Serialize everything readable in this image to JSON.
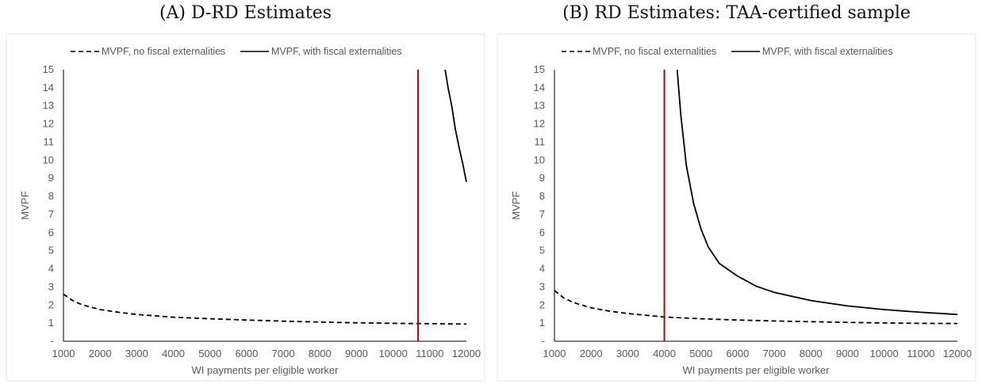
{
  "chart_data": [
    {
      "type": "line",
      "title": "(A) D-RD Estimates",
      "xlabel": "WI payments per eligible worker",
      "ylabel": "MVPF",
      "xlim": [
        1000,
        12000
      ],
      "ylim": [
        0,
        15
      ],
      "x_ticks": [
        "1000",
        "2000",
        "3000",
        "4000",
        "5000",
        "6000",
        "7000",
        "8000",
        "9000",
        "10000",
        "11000",
        "12000"
      ],
      "y_ticks": [
        "-",
        "1",
        "2",
        "3",
        "4",
        "5",
        "6",
        "7",
        "8",
        "9",
        "10",
        "11",
        "12",
        "13",
        "14",
        "15"
      ],
      "legend_position": "top",
      "series": [
        {
          "name": "MVPF, no fiscal externalities",
          "style": "dashed",
          "color": "#000000",
          "points": [
            [
              1000,
              2.6
            ],
            [
              1250,
              2.25
            ],
            [
              1500,
              2.02
            ],
            [
              2000,
              1.75
            ],
            [
              2500,
              1.6
            ],
            [
              3000,
              1.48
            ],
            [
              4000,
              1.33
            ],
            [
              5000,
              1.24
            ],
            [
              6000,
              1.17
            ],
            [
              7000,
              1.11
            ],
            [
              8000,
              1.06
            ],
            [
              9000,
              1.02
            ],
            [
              10000,
              0.99
            ],
            [
              11000,
              0.97
            ],
            [
              12000,
              0.95
            ]
          ]
        },
        {
          "name": "MVPF, with fiscal externalities",
          "style": "solid",
          "color": "#000000",
          "points": [
            [
              11420,
              15
            ],
            [
              11500,
              14
            ],
            [
              11600,
              13
            ],
            [
              11700,
              11.7
            ],
            [
              11800,
              10.7
            ],
            [
              11900,
              9.8
            ],
            [
              12000,
              8.8
            ]
          ]
        }
      ],
      "reference_line": {
        "x": 10680,
        "color": "#c00000"
      }
    },
    {
      "type": "line",
      "title": "(B) RD Estimates: TAA-certified sample",
      "xlabel": "WI payments per eligible worker",
      "ylabel": "MVPF",
      "xlim": [
        1000,
        12000
      ],
      "ylim": [
        0,
        15
      ],
      "x_ticks": [
        "1000",
        "2000",
        "3000",
        "4000",
        "5000",
        "6000",
        "7000",
        "8000",
        "9000",
        "10000",
        "11000",
        "12000"
      ],
      "y_ticks": [
        "-",
        "1",
        "2",
        "3",
        "4",
        "5",
        "6",
        "7",
        "8",
        "9",
        "10",
        "11",
        "12",
        "13",
        "14",
        "15"
      ],
      "legend_position": "top",
      "series": [
        {
          "name": "MVPF, no fiscal externalities",
          "style": "dashed",
          "color": "#000000",
          "points": [
            [
              1000,
              2.8
            ],
            [
              1250,
              2.4
            ],
            [
              1500,
              2.15
            ],
            [
              2000,
              1.85
            ],
            [
              2500,
              1.66
            ],
            [
              3000,
              1.53
            ],
            [
              4000,
              1.34
            ],
            [
              5000,
              1.24
            ],
            [
              6000,
              1.17
            ],
            [
              7000,
              1.12
            ],
            [
              8000,
              1.08
            ],
            [
              9000,
              1.04
            ],
            [
              10000,
              1.01
            ],
            [
              11000,
              0.99
            ],
            [
              12000,
              0.98
            ]
          ]
        },
        {
          "name": "MVPF, with fiscal externalities",
          "style": "solid",
          "color": "#000000",
          "points": [
            [
              4350,
              15
            ],
            [
              4450,
              12.5
            ],
            [
              4600,
              9.7
            ],
            [
              4800,
              7.6
            ],
            [
              5000,
              6.2
            ],
            [
              5200,
              5.2
            ],
            [
              5500,
              4.3
            ],
            [
              6000,
              3.6
            ],
            [
              6500,
              3.05
            ],
            [
              7000,
              2.7
            ],
            [
              8000,
              2.25
            ],
            [
              9000,
              1.95
            ],
            [
              10000,
              1.75
            ],
            [
              11000,
              1.6
            ],
            [
              12000,
              1.48
            ]
          ]
        }
      ],
      "reference_line": {
        "x": 4000,
        "color": "#c00000"
      }
    }
  ]
}
